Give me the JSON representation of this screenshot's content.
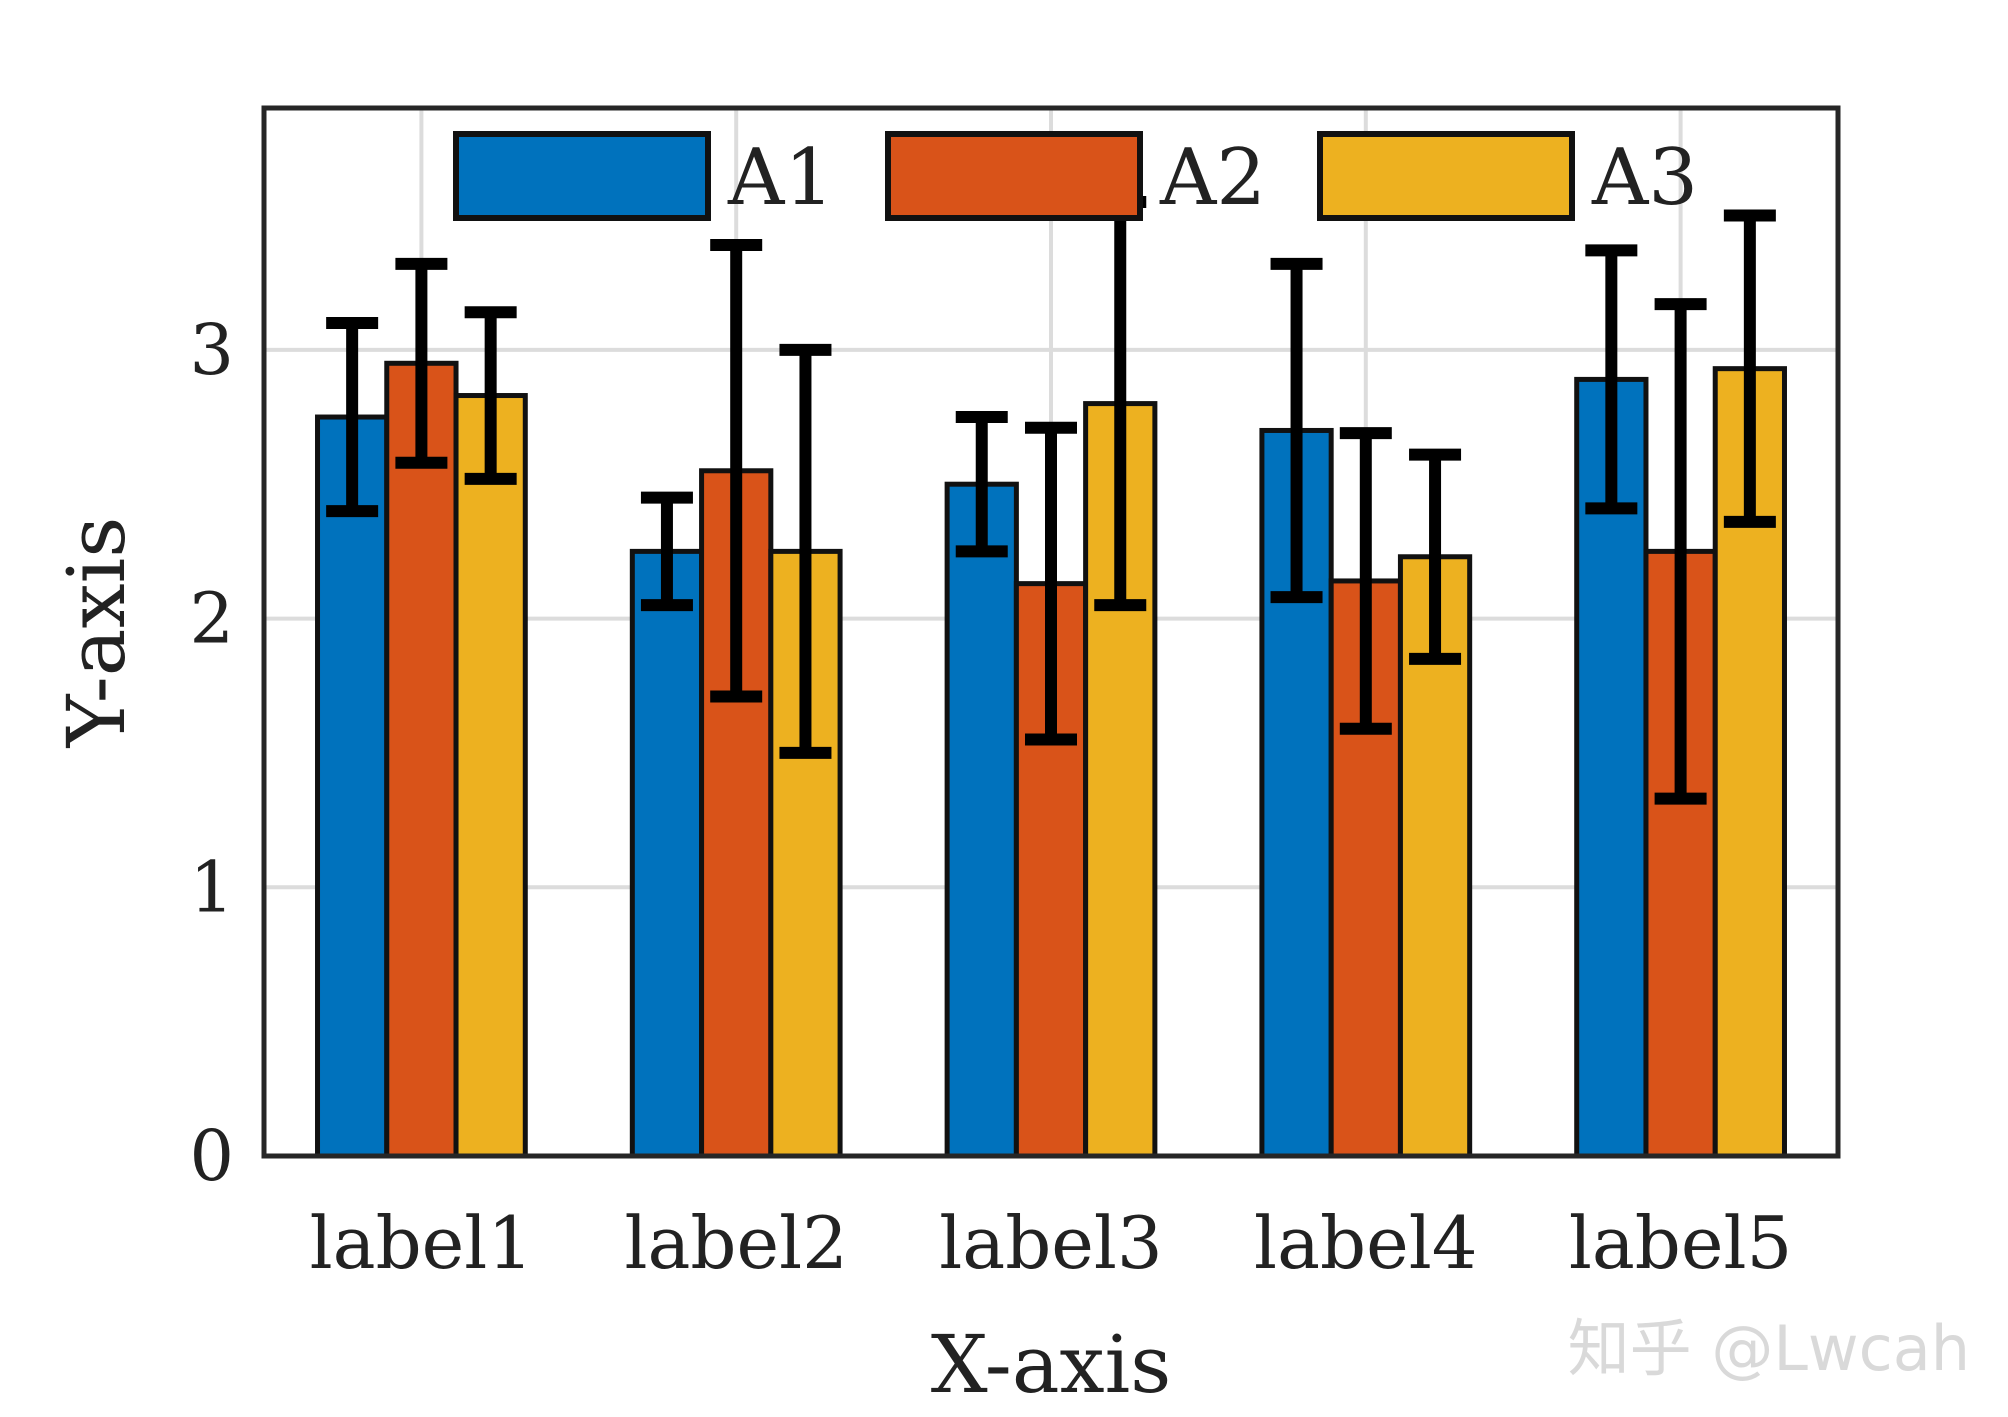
{
  "chart_data": {
    "type": "bar",
    "title": "",
    "xlabel": "X-axis",
    "ylabel": "Y-axis",
    "categories": [
      "label1",
      "label2",
      "label3",
      "label4",
      "label5"
    ],
    "ylim": [
      0,
      3.9
    ],
    "yticks": [
      0,
      1,
      2,
      3
    ],
    "grid": true,
    "legend": {
      "placement": "top",
      "ncol": 3
    },
    "series": [
      {
        "name": "A1",
        "color": "#0072BD",
        "values": [
          2.75,
          2.25,
          2.5,
          2.7,
          2.89
        ],
        "errors": [
          0.35,
          0.2,
          0.25,
          0.62,
          0.48
        ]
      },
      {
        "name": "A2",
        "color": "#D95319",
        "values": [
          2.95,
          2.55,
          2.13,
          2.14,
          2.25
        ],
        "errors": [
          0.37,
          0.84,
          0.58,
          0.55,
          0.92
        ]
      },
      {
        "name": "A3",
        "color": "#EDB120",
        "values": [
          2.83,
          2.25,
          2.8,
          2.23,
          2.93
        ],
        "errors": [
          0.31,
          0.75,
          0.75,
          0.38,
          0.57
        ]
      }
    ]
  },
  "watermark": "知乎 @Lwcah"
}
